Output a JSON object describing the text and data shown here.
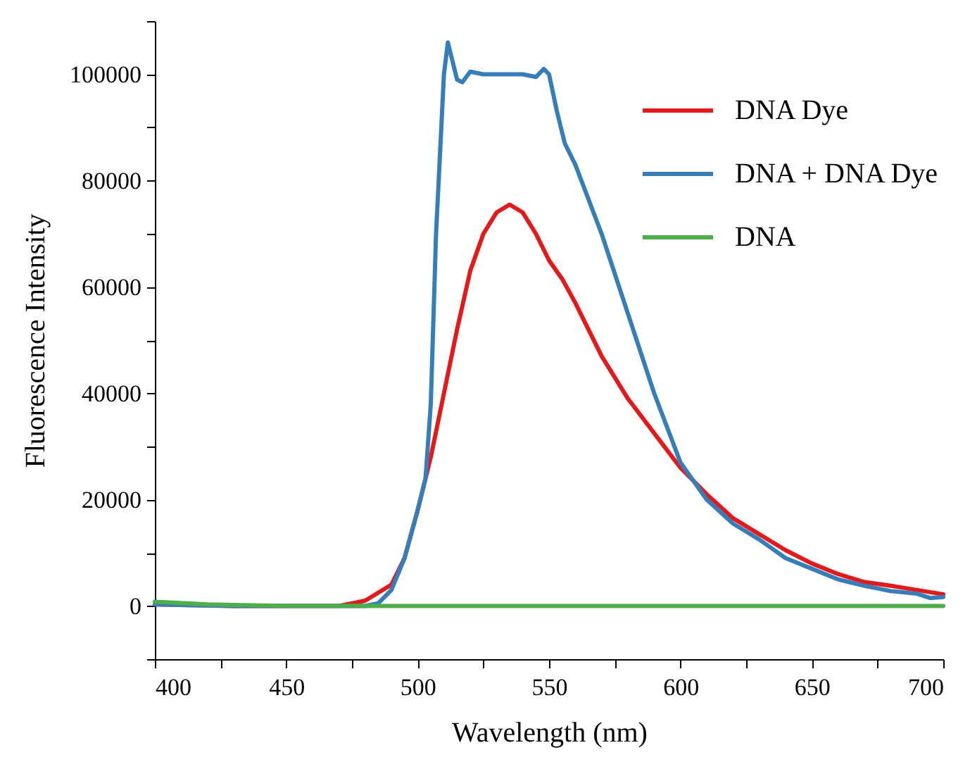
{
  "chart_data": {
    "type": "line",
    "xlabel": "Wavelength (nm)",
    "ylabel": "Fluorescence Intensity",
    "xlim": [
      400,
      700
    ],
    "xticks": [
      400,
      {
        "value": 425,
        "label": null
      },
      450,
      {
        "value": 475,
        "label": null
      },
      500,
      {
        "value": 525,
        "label": null
      },
      550,
      {
        "value": 575,
        "label": null
      },
      600,
      {
        "value": 625,
        "label": null
      },
      650,
      {
        "value": 675,
        "label": null
      },
      700
    ],
    "ylim": [
      -10000,
      110000
    ],
    "yticks": [
      {
        "value": -10000,
        "label": null
      },
      0,
      {
        "value": 10000,
        "label": null
      },
      20000,
      {
        "value": 30000,
        "label": null
      },
      40000,
      {
        "value": 50000,
        "label": null
      },
      60000,
      {
        "value": 70000,
        "label": null
      },
      80000,
      {
        "value": 90000,
        "label": null
      },
      100000,
      {
        "value": 110000,
        "label": null
      }
    ],
    "grid": false,
    "legend": "top right",
    "marker": "none",
    "line_style": "solid",
    "series": [
      {
        "name": "DNA Dye",
        "color": "#e31a1c",
        "x": [
          400,
          430,
          470,
          480,
          490,
          495,
          500,
          505,
          510,
          515,
          520,
          525,
          530,
          535,
          540,
          545,
          550,
          555,
          560,
          570,
          580,
          590,
          600,
          610,
          620,
          630,
          640,
          650,
          660,
          670,
          680,
          690,
          700
        ],
        "values": [
          300,
          0,
          0,
          1000,
          4000,
          9000,
          18000,
          28000,
          40000,
          52000,
          63000,
          70000,
          74000,
          75500,
          74000,
          70000,
          65000,
          61500,
          57000,
          47000,
          39000,
          32500,
          26000,
          21000,
          16500,
          13500,
          10500,
          8000,
          6000,
          4500,
          3800,
          3000,
          2200
        ]
      },
      {
        "name": "DNA + DNA Dye",
        "color": "#377eb8",
        "x": [
          400,
          430,
          480,
          485,
          490,
          495,
          500,
          503,
          505,
          507,
          509,
          510,
          511.5,
          513,
          515,
          517,
          520,
          525,
          530,
          540,
          545,
          548,
          550,
          553,
          556,
          560,
          570,
          580,
          590,
          600,
          610,
          620,
          630,
          640,
          650,
          660,
          670,
          680,
          690,
          695,
          700
        ],
        "values": [
          300,
          0,
          0,
          500,
          3000,
          9000,
          18000,
          24000,
          38000,
          70000,
          90000,
          100000,
          106000,
          103000,
          99000,
          98500,
          100500,
          100000,
          100000,
          100000,
          99500,
          101000,
          100000,
          93000,
          87000,
          83000,
          70000,
          55000,
          40000,
          27000,
          20000,
          15500,
          12500,
          9000,
          7000,
          5000,
          3800,
          2800,
          2300,
          1500,
          1700
        ]
      },
      {
        "name": "DNA",
        "color": "#4daf4a",
        "x": [
          400,
          420,
          450,
          500,
          550,
          600,
          650,
          700
        ],
        "values": [
          800,
          300,
          0,
          0,
          0,
          0,
          0,
          0
        ]
      }
    ]
  }
}
